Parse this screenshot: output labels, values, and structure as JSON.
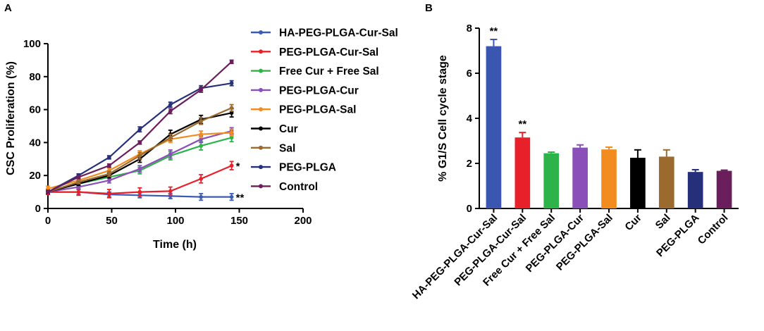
{
  "chart_data": [
    {
      "panel": "A",
      "type": "line",
      "xlabel": "Time (h)",
      "ylabel": "CSC Proliferation (%)",
      "xlim": [
        0,
        200
      ],
      "ylim": [
        0,
        100
      ],
      "xticks": [
        "0",
        "50",
        "100",
        "150",
        "200"
      ],
      "yticks": [
        "0",
        "20",
        "40",
        "60",
        "80",
        "100"
      ],
      "x": [
        0,
        24,
        48,
        72,
        96,
        120,
        144
      ],
      "series": [
        {
          "name": "HA-PEG-PLGA-Cur-Sal",
          "color": "#3b5bb5",
          "values": [
            10,
            10,
            8.5,
            8,
            7.5,
            7,
            7
          ],
          "errors": [
            1.5,
            1.5,
            1.5,
            1.5,
            1.5,
            2.0,
            2.0
          ]
        },
        {
          "name": "PEG-PLGA-Cur-Sal",
          "color": "#e8202a",
          "values": [
            10,
            10,
            9,
            10,
            10.5,
            18,
            26
          ],
          "errors": [
            1.5,
            2.0,
            2.5,
            2.5,
            2.5,
            2.5,
            2.5
          ]
        },
        {
          "name": "Free Cur + Free Sal",
          "color": "#2db34a",
          "values": [
            10,
            15,
            19,
            23,
            32,
            38,
            43
          ],
          "errors": [
            1.0,
            1.5,
            2.0,
            2.0,
            2.5,
            2.5,
            2.5
          ]
        },
        {
          "name": "PEG-PLGA-Cur",
          "color": "#8a4fb8",
          "values": [
            10,
            13,
            17,
            24,
            33,
            42,
            47
          ],
          "errors": [
            1.0,
            1.0,
            1.5,
            2.0,
            2.5,
            2.0,
            2.0
          ]
        },
        {
          "name": "PEG-PLGA-Sal",
          "color": "#f28c1e",
          "values": [
            12,
            17,
            23,
            33,
            42,
            45,
            46
          ],
          "errors": [
            1.5,
            1.5,
            1.5,
            2.0,
            2.0,
            2.0,
            2.0
          ]
        },
        {
          "name": "Cur",
          "color": "#000000",
          "values": [
            10,
            15,
            20,
            30,
            45,
            54,
            58
          ],
          "errors": [
            1.0,
            1.0,
            1.5,
            2.0,
            2.5,
            2.5,
            2.5
          ]
        },
        {
          "name": "Sal",
          "color": "#9a6a2e",
          "values": [
            10,
            16,
            21,
            32,
            43,
            53,
            61
          ],
          "errors": [
            1.0,
            1.0,
            1.5,
            2.0,
            2.0,
            2.0,
            2.0
          ]
        },
        {
          "name": "PEG-PLGA",
          "color": "#26307a",
          "values": [
            10,
            20,
            31,
            48,
            63,
            73,
            76
          ],
          "errors": [
            1.0,
            1.0,
            1.0,
            1.5,
            1.5,
            1.5,
            1.5
          ]
        },
        {
          "name": "Control",
          "color": "#6a1f5c",
          "values": [
            10,
            19,
            26,
            40,
            59,
            72,
            89
          ],
          "errors": [
            1.0,
            1.0,
            1.0,
            1.0,
            1.5,
            1.5,
            1.0
          ]
        }
      ],
      "annotations": [
        {
          "text": "*",
          "series": "PEG-PLGA-Cur-Sal"
        },
        {
          "text": "**",
          "series": "HA-PEG-PLGA-Cur-Sal"
        }
      ],
      "legend_position": "right"
    },
    {
      "panel": "B",
      "type": "bar",
      "ylabel": "% G1/S Cell cycle stage",
      "ylim": [
        0,
        8
      ],
      "yticks": [
        "0",
        "2",
        "4",
        "6",
        "8"
      ],
      "categories": [
        "HA-PEG-PLGA-Cur-Sal",
        "PEG-PLGA-Cur-Sal",
        "Free Cur + Free Sal",
        "PEG-PLGA-Cur",
        "PEG-PLGA-Sal",
        "Cur",
        "Sal",
        "PEG-PLGA",
        "Control"
      ],
      "values": [
        7.2,
        3.15,
        2.45,
        2.7,
        2.62,
        2.25,
        2.3,
        1.62,
        1.67
      ],
      "errors": [
        0.3,
        0.22,
        0.05,
        0.12,
        0.1,
        0.35,
        0.3,
        0.1,
        0.03
      ],
      "colors": [
        "#3b56b0",
        "#e8202a",
        "#2db34a",
        "#8a4fb8",
        "#f28c1e",
        "#000000",
        "#9a6a2e",
        "#26307a",
        "#6a1f5c"
      ],
      "annotations": [
        {
          "text": "**",
          "category": "HA-PEG-PLGA-Cur-Sal"
        },
        {
          "text": "**",
          "category": "PEG-PLGA-Cur-Sal"
        }
      ]
    }
  ]
}
